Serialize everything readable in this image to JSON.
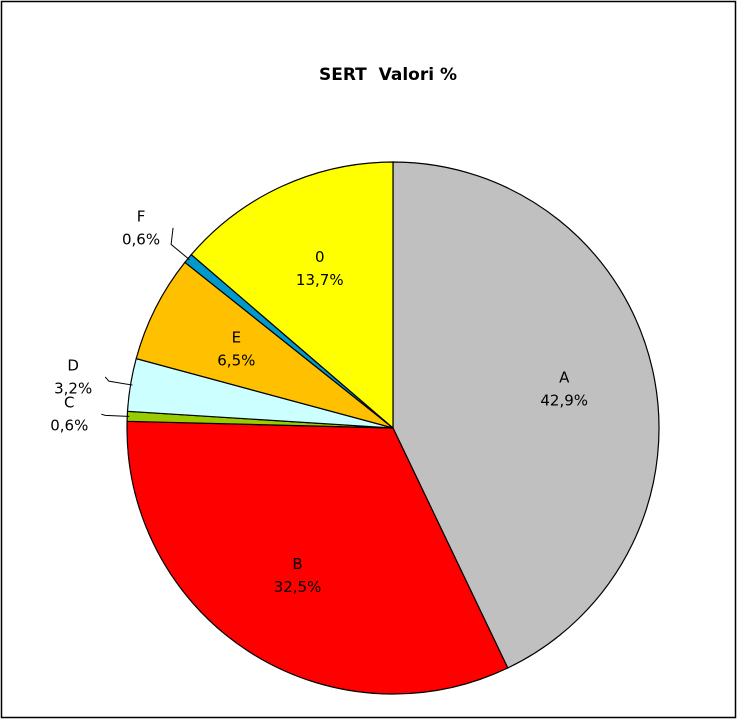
{
  "chart_data": {
    "type": "pie",
    "title": "SERT  Valori %",
    "categories": [
      "A",
      "B",
      "C",
      "D",
      "E",
      "F",
      "0"
    ],
    "values": [
      42.9,
      32.5,
      0.6,
      3.2,
      6.5,
      0.6,
      13.7
    ],
    "value_labels": [
      "42,9%",
      "32,5%",
      "0,6%",
      "3,2%",
      "6,5%",
      "0,6%",
      "13,7%"
    ],
    "colors": [
      "#c0c0c0",
      "#ff0000",
      "#99cc00",
      "#ccffff",
      "#ffc000",
      "#0099cc",
      "#ffff00"
    ]
  }
}
